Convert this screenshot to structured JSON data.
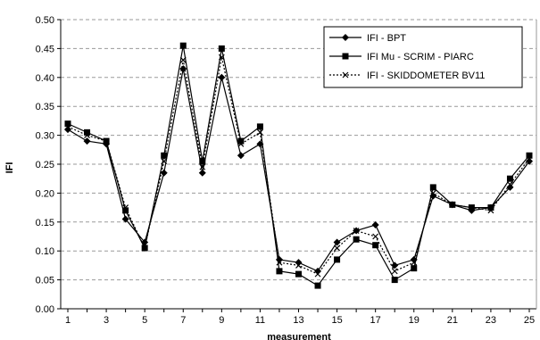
{
  "chart_data": {
    "type": "line",
    "title": "",
    "xlabel": "measurement",
    "ylabel": "IFI",
    "x": [
      1,
      2,
      3,
      4,
      5,
      6,
      7,
      8,
      9,
      10,
      11,
      12,
      13,
      14,
      15,
      16,
      17,
      18,
      19,
      20,
      21,
      22,
      23,
      24,
      25
    ],
    "x_tick_labels": [
      "1",
      "3",
      "5",
      "7",
      "9",
      "11",
      "13",
      "15",
      "17",
      "19",
      "21",
      "23",
      "25"
    ],
    "y_tick_labels": [
      "0.00",
      "0.05",
      "0.10",
      "0.15",
      "0.20",
      "0.25",
      "0.30",
      "0.35",
      "0.40",
      "0.45",
      "0.50"
    ],
    "ylim": [
      0,
      0.5
    ],
    "grid": "horizontal dashed",
    "legend_position": "top-right",
    "series": [
      {
        "name": "IFI - BPT",
        "marker": "diamond",
        "line_style": "solid",
        "values": [
          0.31,
          0.29,
          0.285,
          0.155,
          0.115,
          0.235,
          0.415,
          0.235,
          0.4,
          0.265,
          0.285,
          0.085,
          0.08,
          0.065,
          0.115,
          0.135,
          0.145,
          0.075,
          0.085,
          0.195,
          0.18,
          0.17,
          0.175,
          0.21,
          0.255
        ]
      },
      {
        "name": "IFI Mu - SCRIM - PIARC",
        "marker": "square",
        "line_style": "solid",
        "values": [
          0.32,
          0.305,
          0.29,
          0.17,
          0.105,
          0.265,
          0.455,
          0.255,
          0.45,
          0.29,
          0.315,
          0.065,
          0.06,
          0.04,
          0.085,
          0.12,
          0.11,
          0.05,
          0.07,
          0.21,
          0.18,
          0.175,
          0.175,
          0.225,
          0.265
        ]
      },
      {
        "name": "IFI - SKIDDOMETER BV11",
        "marker": "x",
        "line_style": "dotted",
        "values": [
          0.315,
          0.3,
          0.29,
          0.175,
          0.105,
          0.255,
          0.43,
          0.245,
          0.435,
          0.285,
          0.305,
          0.08,
          0.075,
          0.06,
          0.105,
          0.135,
          0.125,
          0.065,
          0.08,
          0.2,
          0.18,
          0.175,
          0.17,
          0.215,
          0.26
        ]
      }
    ],
    "colors": {
      "line": "#000000",
      "grid": "#9a9a9a",
      "axis": "#000000"
    }
  }
}
